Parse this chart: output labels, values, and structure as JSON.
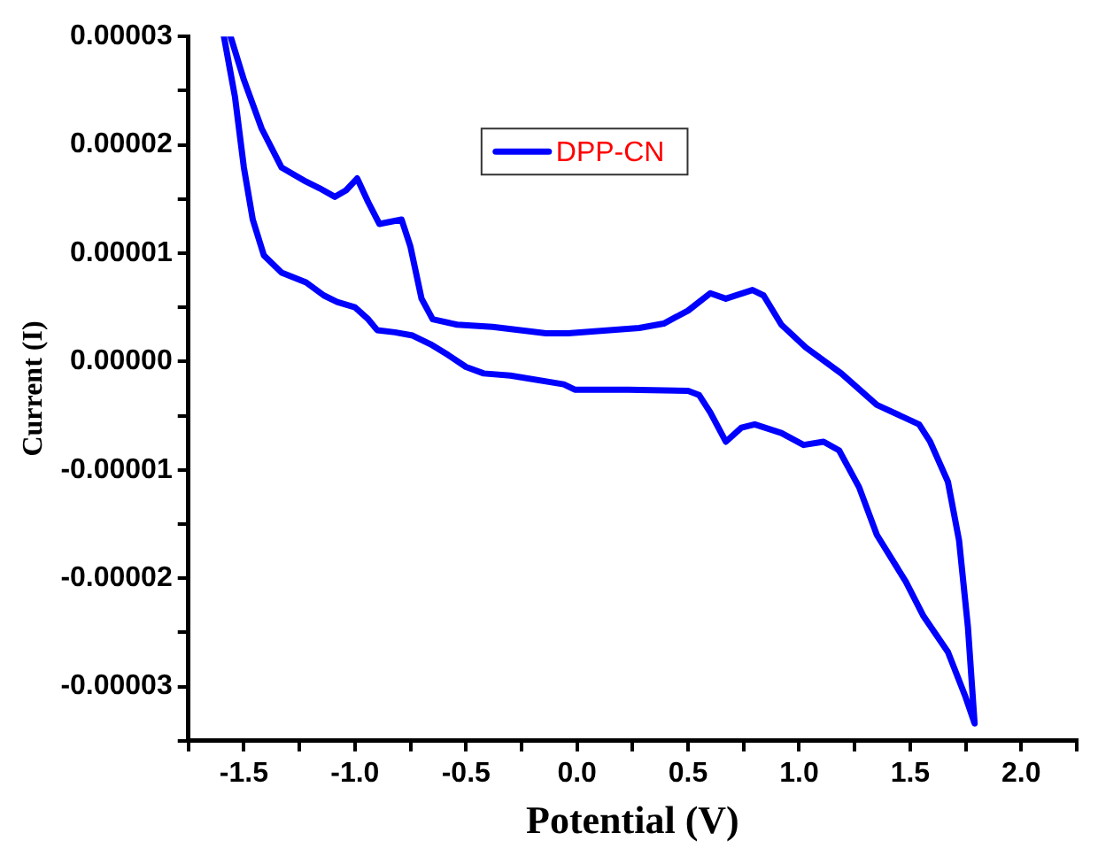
{
  "chart_data": {
    "type": "line",
    "xlabel": "Potential (V)",
    "ylabel": "Current (I)",
    "xlim": [
      -1.75,
      2.25
    ],
    "ylim": [
      -3.5e-05,
      3e-05
    ],
    "xticks": [
      {
        "value": -1.75,
        "label": null
      },
      -1.5,
      {
        "value": -1.25,
        "label": null
      },
      {
        "value": -1.0,
        "label": "-1.0"
      },
      {
        "value": -0.75,
        "label": null
      },
      -0.5,
      {
        "value": -0.25,
        "label": null
      },
      {
        "value": 0,
        "label": "0.0"
      },
      {
        "value": 0.25,
        "label": null
      },
      0.5,
      {
        "value": 0.75,
        "label": null
      },
      {
        "value": 1.0,
        "label": "1.0"
      },
      {
        "value": 1.25,
        "label": null
      },
      1.5,
      {
        "value": 1.75,
        "label": null
      },
      {
        "value": 2.0,
        "label": "2.0"
      },
      {
        "value": 2.25,
        "label": null
      }
    ],
    "yticks": [
      {
        "value": -3.5e-05,
        "label": null
      },
      {
        "value": -3e-05,
        "label": "-0.00003"
      },
      {
        "value": -2.5e-05,
        "label": null
      },
      {
        "value": -2e-05,
        "label": "-0.00002"
      },
      {
        "value": -1.5e-05,
        "label": null
      },
      {
        "value": -1e-05,
        "label": "-0.00001"
      },
      {
        "value": -5e-06,
        "label": null
      },
      {
        "value": 0,
        "label": "0.00000"
      },
      {
        "value": 5e-06,
        "label": null
      },
      {
        "value": 1e-05,
        "label": "0.00001"
      },
      {
        "value": 1.5e-05,
        "label": null
      },
      {
        "value": 2e-05,
        "label": "0.00002"
      },
      {
        "value": 2.5e-05,
        "label": null
      },
      {
        "value": 3e-05,
        "label": "0.00003"
      }
    ],
    "grid": false,
    "legend": "top",
    "marker": "none",
    "line_style": "solid",
    "series": [
      {
        "name": "DPP-CN",
        "color": "#0000ff",
        "x": [
          -1.56,
          -1.5,
          -1.42,
          -1.33,
          -1.22,
          -1.16,
          -1.09,
          -1.04,
          -0.99,
          -0.94,
          -0.89,
          -0.84,
          -0.79,
          -0.75,
          -0.7,
          -0.65,
          -0.54,
          -0.38,
          -0.14,
          -0.04,
          0.28,
          0.39,
          0.5,
          0.6,
          0.67,
          0.79,
          0.84,
          0.92,
          1.03,
          1.19,
          1.35,
          1.54,
          1.59,
          1.67,
          1.72,
          1.76,
          1.79,
          1.75,
          1.67,
          1.56,
          1.48,
          1.35,
          1.27,
          1.18,
          1.11,
          1.02,
          0.92,
          0.8,
          0.74,
          0.67,
          0.6,
          0.55,
          0.5,
          0.23,
          -0.01,
          -0.06,
          -0.3,
          -0.42,
          -0.5,
          -0.58,
          -0.66,
          -0.74,
          -0.82,
          -0.9,
          -0.94,
          -1.0,
          -1.08,
          -1.14,
          -1.22,
          -1.33,
          -1.41,
          -1.46,
          -1.5,
          -1.54,
          -1.59
        ],
        "values": [
          3e-05,
          2.6e-05,
          2.15e-05,
          1.79e-05,
          1.66e-05,
          1.6e-05,
          1.52e-05,
          1.58e-05,
          1.69e-05,
          1.47e-05,
          1.27e-05,
          1.29e-05,
          1.31e-05,
          1.06e-05,
          5.8e-06,
          3.9e-06,
          3.4e-06,
          3.2e-06,
          2.6e-06,
          2.6e-06,
          3.1e-06,
          3.5e-06,
          4.7e-06,
          6.3e-06,
          5.8e-06,
          6.6e-06,
          6.1e-06,
          3.4e-06,
          1.3e-06,
          -1.1e-06,
          -4e-06,
          -5.8e-06,
          -7.4e-06,
          -1.11e-05,
          -1.65e-05,
          -2.45e-05,
          -3.34e-05,
          -3.1e-05,
          -2.68e-05,
          -2.35e-05,
          -2.03e-05,
          -1.6e-05,
          -1.16e-05,
          -8.2e-06,
          -7.4e-06,
          -7.7e-06,
          -6.6e-06,
          -5.8e-06,
          -6.1e-06,
          -7.4e-06,
          -4.7e-06,
          -3.1e-06,
          -2.7e-06,
          -2.6e-06,
          -2.6e-06,
          -2.1e-06,
          -1.3e-06,
          -1.1e-06,
          -5e-07,
          6e-07,
          1.6e-06,
          2.4e-06,
          2.7e-06,
          2.9e-06,
          3.9e-06,
          5e-06,
          5.5e-06,
          6.1e-06,
          7.3e-06,
          8.2e-06,
          9.8e-06,
          1.31e-05,
          1.79e-05,
          2.44e-05,
          3e-05
        ]
      }
    ]
  }
}
